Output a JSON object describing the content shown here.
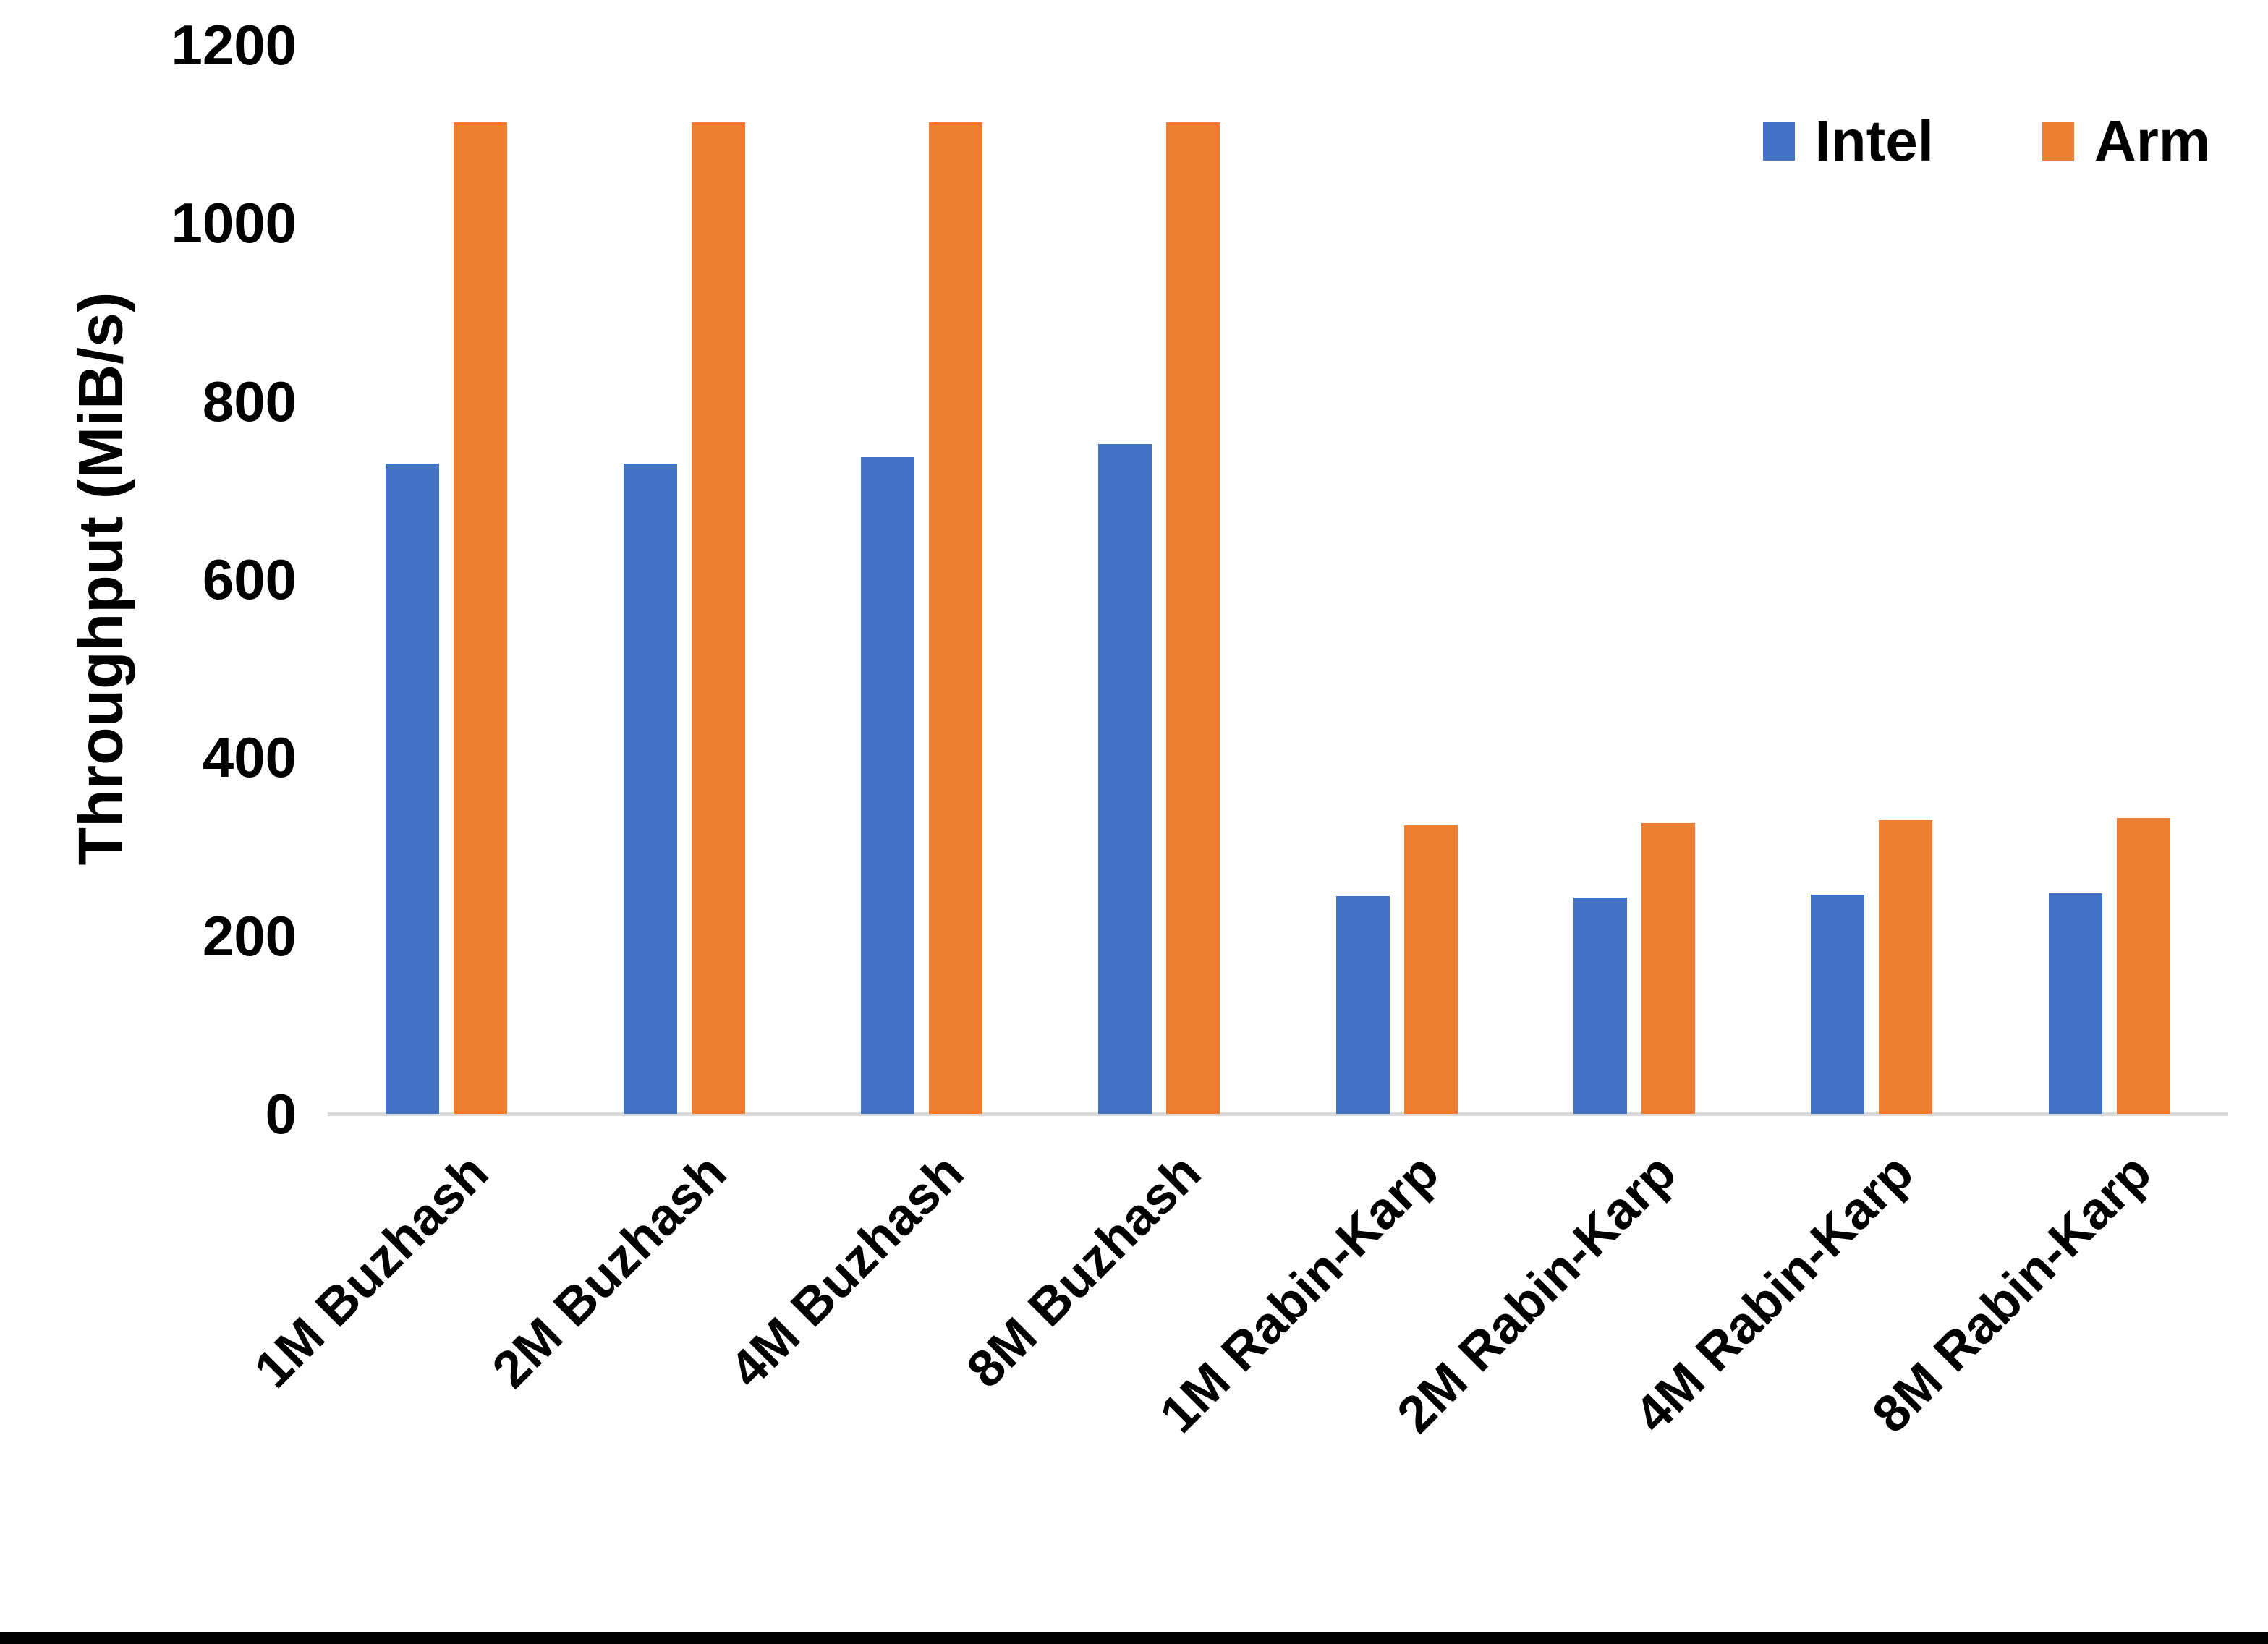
{
  "chart_data": {
    "type": "bar",
    "title": "",
    "ylabel": "Throughput (MiB/s)",
    "xlabel": "",
    "ylim": [
      0,
      1200
    ],
    "yticks": [
      0,
      200,
      400,
      600,
      800,
      1000,
      1200
    ],
    "grid": false,
    "legend_position": "top-right",
    "categories": [
      "1M Buzhash",
      "2M Buzhash",
      "4M Buzhash",
      "8M Buzhash",
      "1M Rabin-Karp",
      "2M Rabin-Karp",
      "4M Rabin-Karp",
      "8M Rabin-Karp"
    ],
    "series": [
      {
        "name": "Intel",
        "color": "#4472C4",
        "values": [
          730,
          730,
          737,
          752,
          244,
          243,
          246,
          248
        ]
      },
      {
        "name": "Arm",
        "color": "#ED7D31",
        "values": [
          1113,
          1113,
          1113,
          1113,
          324,
          326,
          330,
          332
        ]
      }
    ]
  },
  "colors": {
    "intel": "#4472C4",
    "arm": "#ED7D31",
    "axis_line": "#D9D9D9",
    "text": "#000000",
    "bottom_border": "#000000"
  }
}
